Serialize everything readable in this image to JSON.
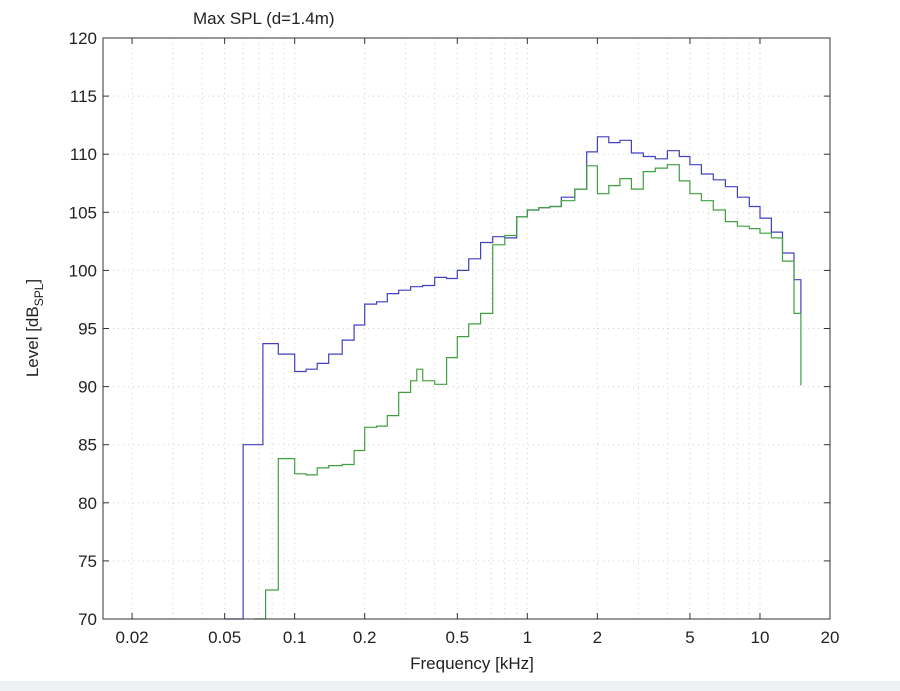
{
  "chart_data": {
    "type": "line",
    "title": "Max SPL (d=1.4m)",
    "xlabel": "Frequency [kHz]",
    "ylabel": {
      "main": "Level [dB",
      "sub": "SPL",
      "end": "]"
    },
    "xscale": "log",
    "xlim": [
      0.015,
      20
    ],
    "ylim": [
      70,
      120
    ],
    "xticks": [
      0.02,
      0.05,
      0.1,
      0.2,
      0.5,
      1,
      2,
      5,
      10,
      20
    ],
    "xtick_labels": [
      "0.02",
      "0.05",
      "0.1",
      "0.2",
      "0.5",
      "1",
      "2",
      "5",
      "10",
      "20"
    ],
    "yticks": [
      70,
      75,
      80,
      85,
      90,
      95,
      100,
      105,
      110,
      115,
      120
    ],
    "ytick_labels": [
      "70",
      "75",
      "80",
      "85",
      "90",
      "95",
      "100",
      "105",
      "110",
      "115",
      "120"
    ],
    "grid": "dotted",
    "series": [
      {
        "color": "#4040c0",
        "points": [
          [
            0.05,
            70
          ],
          [
            0.06,
            85
          ],
          [
            0.073,
            93.7
          ],
          [
            0.085,
            92.8
          ],
          [
            0.1,
            91.3
          ],
          [
            0.112,
            91.5
          ],
          [
            0.125,
            92
          ],
          [
            0.14,
            92.8
          ],
          [
            0.16,
            94
          ],
          [
            0.18,
            95.3
          ],
          [
            0.2,
            97.1
          ],
          [
            0.225,
            97.3
          ],
          [
            0.25,
            98
          ],
          [
            0.28,
            98.3
          ],
          [
            0.315,
            98.6
          ],
          [
            0.355,
            98.7
          ],
          [
            0.4,
            99.4
          ],
          [
            0.45,
            99.3
          ],
          [
            0.5,
            100
          ],
          [
            0.56,
            101
          ],
          [
            0.63,
            102.4
          ],
          [
            0.71,
            102.9
          ],
          [
            0.8,
            102.8
          ],
          [
            0.9,
            104.6
          ],
          [
            1.0,
            105.2
          ],
          [
            1.12,
            105.4
          ],
          [
            1.25,
            105.5
          ],
          [
            1.4,
            106.3
          ],
          [
            1.6,
            107
          ],
          [
            1.8,
            110.2
          ],
          [
            2.0,
            111.5
          ],
          [
            2.24,
            111
          ],
          [
            2.5,
            111.2
          ],
          [
            2.8,
            110.1
          ],
          [
            3.15,
            109.8
          ],
          [
            3.55,
            109.6
          ],
          [
            4.0,
            110.3
          ],
          [
            4.5,
            109.8
          ],
          [
            5.0,
            109.1
          ],
          [
            5.6,
            108.3
          ],
          [
            6.3,
            107.8
          ],
          [
            7.1,
            107.2
          ],
          [
            8.0,
            106.3
          ],
          [
            9.0,
            105.5
          ],
          [
            10.0,
            104.5
          ],
          [
            11.2,
            103.3
          ],
          [
            12.5,
            101.5
          ],
          [
            14.0,
            99.2
          ],
          [
            15.0,
            96.3
          ]
        ]
      },
      {
        "color": "#40a040",
        "points": [
          [
            0.067,
            70
          ],
          [
            0.075,
            72.5
          ],
          [
            0.085,
            83.8
          ],
          [
            0.1,
            82.5
          ],
          [
            0.112,
            82.4
          ],
          [
            0.125,
            83
          ],
          [
            0.14,
            83.2
          ],
          [
            0.16,
            83.3
          ],
          [
            0.18,
            84.5
          ],
          [
            0.2,
            86.5
          ],
          [
            0.225,
            86.6
          ],
          [
            0.25,
            87.5
          ],
          [
            0.28,
            89.5
          ],
          [
            0.315,
            90.5
          ],
          [
            0.335,
            91.5
          ],
          [
            0.355,
            90.5
          ],
          [
            0.4,
            90.2
          ],
          [
            0.45,
            92.5
          ],
          [
            0.5,
            94.3
          ],
          [
            0.56,
            95.4
          ],
          [
            0.63,
            96.3
          ],
          [
            0.71,
            102.2
          ],
          [
            0.8,
            103
          ],
          [
            0.9,
            104.6
          ],
          [
            1.0,
            105.2
          ],
          [
            1.12,
            105.4
          ],
          [
            1.25,
            105.5
          ],
          [
            1.4,
            106
          ],
          [
            1.6,
            107
          ],
          [
            1.8,
            109
          ],
          [
            2.0,
            106.6
          ],
          [
            2.24,
            107.3
          ],
          [
            2.5,
            107.9
          ],
          [
            2.8,
            107
          ],
          [
            3.15,
            108.5
          ],
          [
            3.55,
            108.8
          ],
          [
            4.0,
            109.1
          ],
          [
            4.5,
            107.7
          ],
          [
            5.0,
            106.6
          ],
          [
            5.6,
            106
          ],
          [
            6.3,
            105.2
          ],
          [
            7.1,
            104.2
          ],
          [
            8.0,
            103.8
          ],
          [
            9.0,
            103.6
          ],
          [
            10.0,
            103.2
          ],
          [
            11.2,
            102.8
          ],
          [
            12.5,
            100.8
          ],
          [
            14.0,
            96.3
          ],
          [
            15.0,
            90.1
          ]
        ]
      }
    ]
  }
}
